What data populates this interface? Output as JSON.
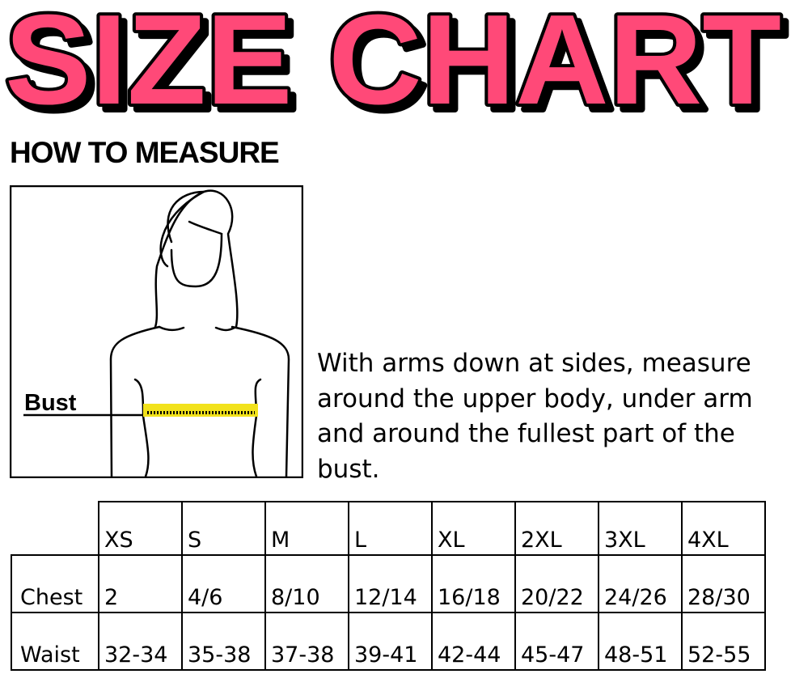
{
  "title": "SIZE CHART",
  "colors": {
    "title_fill": "#ff4a78",
    "tape": "#f2e21c"
  },
  "how_to_measure": "HOW TO MEASURE",
  "figure_label": "Bust",
  "instructions": "With arms down at sides, measure around the upper body, under arm and around the fullest part of the bust.",
  "table": {
    "sizes": [
      "XS",
      "S",
      "M",
      "L",
      "XL",
      "2XL",
      "3XL",
      "4XL"
    ],
    "rows": [
      {
        "label": "Chest",
        "values": [
          "2",
          "4/6",
          "8/10",
          "12/14",
          "16/18",
          "20/22",
          "24/26",
          "28/30"
        ]
      },
      {
        "label": "Waist",
        "values": [
          "32-34",
          "35-38",
          "37-38",
          "39-41",
          "42-44",
          "45-47",
          "48-51",
          "52-55"
        ]
      }
    ]
  }
}
